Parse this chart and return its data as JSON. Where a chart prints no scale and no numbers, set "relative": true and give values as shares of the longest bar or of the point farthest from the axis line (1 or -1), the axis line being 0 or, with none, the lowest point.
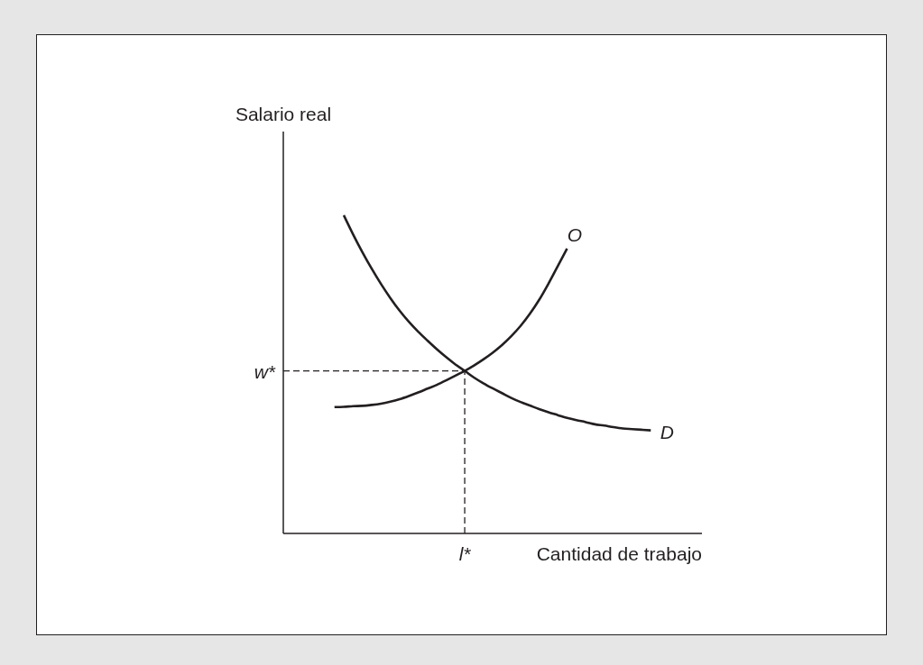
{
  "chart_data": {
    "type": "line",
    "relative": true,
    "xlabel": "Cantidad de trabajo",
    "ylabel": "Salario real",
    "categories": [
      null,
      null,
      null,
      null,
      null,
      null,
      null,
      null,
      null,
      null,
      null,
      null,
      null,
      null,
      null,
      null,
      null,
      null,
      null,
      null,
      null,
      null,
      null,
      null,
      null,
      null,
      null,
      null,
      null,
      null,
      null,
      null,
      null,
      null,
      null,
      null,
      null,
      null,
      null,
      null,
      null,
      null,
      null,
      null,
      null
    ],
    "series": [
      {
        "name": "O",
        "color": "#231f20",
        "values": [
          null,
          null,
          null,
          null,
          null,
          0.397,
          0.398,
          0.4,
          0.401,
          0.404,
          0.408,
          0.414,
          0.422,
          0.432,
          0.443,
          0.455,
          0.467,
          0.481,
          0.496,
          0.511,
          0.528,
          0.547,
          0.568,
          0.592,
          0.62,
          0.652,
          0.69,
          0.734,
          0.785,
          0.84,
          0.895,
          null,
          null,
          null,
          null,
          null,
          null,
          null,
          null,
          null,
          null,
          null,
          null,
          null,
          null
        ]
      },
      {
        "name": "D",
        "color": "#231f20",
        "values": [
          null,
          null,
          null,
          null,
          null,
          null,
          1,
          0.94,
          0.884,
          0.832,
          0.784,
          0.74,
          0.7,
          0.665,
          0.634,
          0.606,
          0.579,
          0.554,
          0.531,
          0.511,
          0.49,
          0.472,
          0.456,
          0.441,
          0.426,
          0.413,
          0.402,
          0.391,
          0.381,
          0.372,
          0.363,
          0.356,
          0.35,
          0.343,
          0.339,
          0.334,
          0.33,
          0.328,
          0.326,
          0.324,
          null,
          null,
          null,
          null,
          null
        ]
      }
    ],
    "ref_lines": [
      {
        "axis": "y",
        "value": 0.511,
        "label": "w*",
        "color": "#231f20",
        "line_style": "dashed"
      }
    ],
    "annotations": [
      "l*"
    ]
  }
}
